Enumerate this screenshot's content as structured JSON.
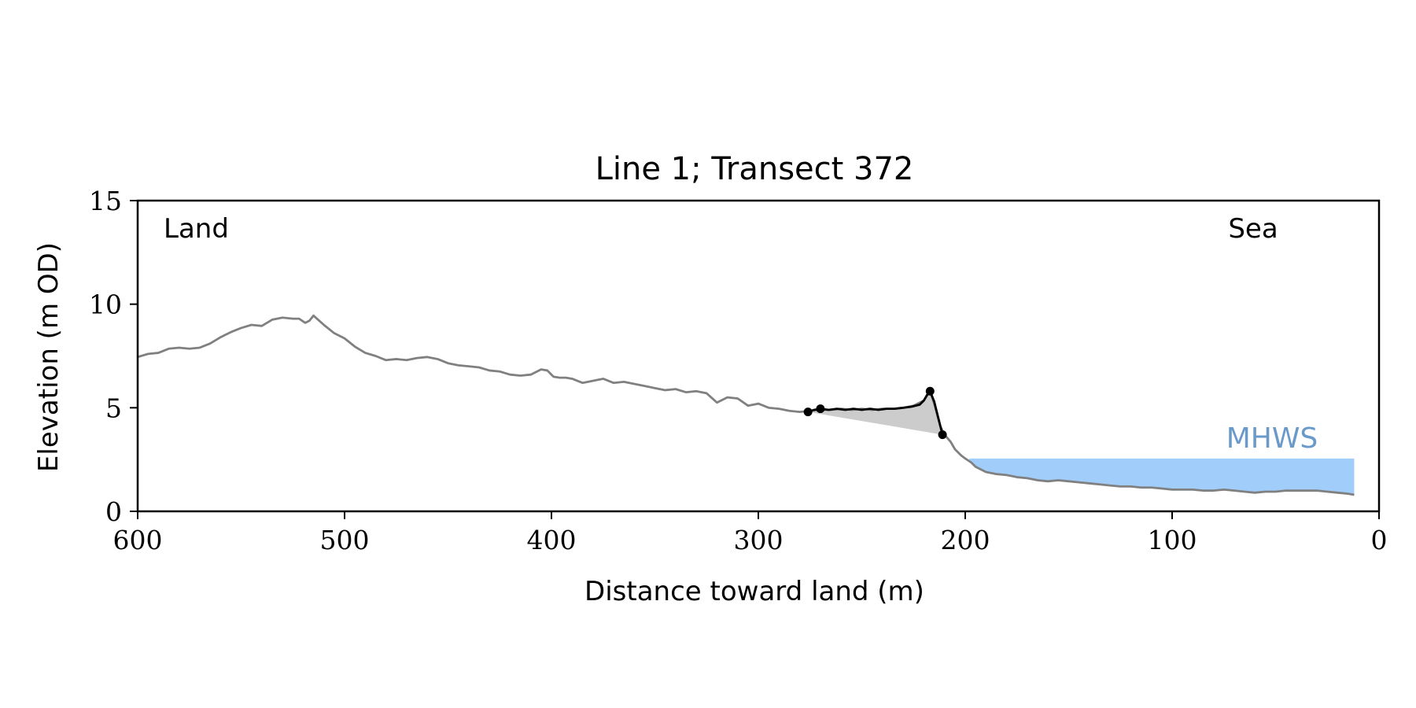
{
  "chart_data": {
    "type": "line",
    "title": "Line 1; Transect 372",
    "xlabel": "Distance toward land (m)",
    "ylabel": "Elevation (m OD)",
    "xlim": [
      600,
      0
    ],
    "ylim": [
      0,
      15
    ],
    "x_ticks": [
      600,
      500,
      400,
      300,
      200,
      100,
      0
    ],
    "y_ticks": [
      0,
      5,
      10,
      15
    ],
    "grid": false,
    "annotations": {
      "land": "Land",
      "sea": "Sea",
      "mhws": "MHWS"
    },
    "mhws": {
      "label": "MHWS",
      "elevation": 2.55,
      "x_range": [
        198,
        12
      ]
    },
    "series": [
      {
        "role": "full-profile",
        "x": [
          600,
          595,
          590,
          585,
          580,
          575,
          570,
          565,
          560,
          555,
          550,
          545,
          540,
          535,
          530,
          525,
          522,
          519,
          517,
          515,
          510,
          505,
          500,
          495,
          490,
          485,
          480,
          475,
          470,
          465,
          460,
          455,
          450,
          445,
          440,
          435,
          430,
          425,
          420,
          415,
          410,
          405,
          402,
          399,
          396,
          393,
          390,
          385,
          380,
          375,
          370,
          365,
          360,
          355,
          350,
          345,
          340,
          335,
          330,
          325,
          320,
          315,
          310,
          305,
          300,
          295,
          290,
          285,
          280,
          275,
          270,
          265,
          260,
          255,
          250,
          245,
          240,
          235,
          230,
          225,
          220,
          217,
          215,
          212,
          210,
          207,
          205,
          202,
          200,
          197,
          195,
          190,
          185,
          180,
          175,
          170,
          165,
          160,
          155,
          150,
          145,
          140,
          135,
          130,
          125,
          120,
          115,
          110,
          105,
          100,
          95,
          90,
          85,
          80,
          75,
          70,
          65,
          60,
          55,
          50,
          45,
          40,
          35,
          30,
          25,
          20,
          15,
          12
        ],
        "y": [
          7.45,
          7.6,
          7.65,
          7.85,
          7.9,
          7.85,
          7.9,
          8.1,
          8.4,
          8.65,
          8.85,
          9.0,
          8.95,
          9.25,
          9.35,
          9.3,
          9.3,
          9.1,
          9.2,
          9.45,
          9.0,
          8.6,
          8.35,
          7.95,
          7.65,
          7.5,
          7.3,
          7.35,
          7.3,
          7.4,
          7.45,
          7.35,
          7.15,
          7.05,
          7.0,
          6.95,
          6.8,
          6.75,
          6.6,
          6.55,
          6.6,
          6.85,
          6.8,
          6.5,
          6.45,
          6.45,
          6.4,
          6.2,
          6.3,
          6.4,
          6.2,
          6.25,
          6.15,
          6.05,
          5.95,
          5.85,
          5.9,
          5.75,
          5.8,
          5.7,
          5.25,
          5.5,
          5.45,
          5.1,
          5.2,
          5.0,
          4.95,
          4.85,
          4.8,
          4.85,
          4.9,
          4.9,
          4.95,
          4.9,
          4.95,
          4.9,
          4.95,
          4.95,
          5.0,
          5.1,
          5.35,
          5.8,
          5.2,
          4.1,
          3.7,
          3.35,
          3.0,
          2.7,
          2.55,
          2.35,
          2.15,
          1.9,
          1.8,
          1.75,
          1.65,
          1.6,
          1.5,
          1.45,
          1.5,
          1.45,
          1.4,
          1.35,
          1.3,
          1.25,
          1.2,
          1.2,
          1.15,
          1.15,
          1.1,
          1.05,
          1.05,
          1.05,
          1.0,
          1.0,
          1.05,
          1.0,
          0.95,
          0.9,
          0.95,
          0.95,
          1.0,
          1.0,
          1.0,
          1.0,
          0.95,
          0.9,
          0.85,
          0.8
        ]
      },
      {
        "role": "highlight",
        "x": [
          276,
          273,
          270,
          266,
          262,
          258,
          254,
          250,
          246,
          242,
          238,
          234,
          230,
          226,
          222,
          220,
          218,
          217,
          215,
          213,
          211
        ],
        "y": [
          4.8,
          4.9,
          4.95,
          4.9,
          4.95,
          4.9,
          4.95,
          4.9,
          4.95,
          4.9,
          4.95,
          4.95,
          5.0,
          5.05,
          5.15,
          5.35,
          5.7,
          5.8,
          5.3,
          4.5,
          3.7
        ]
      }
    ],
    "markers": {
      "x": [
        276,
        270,
        217,
        211
      ],
      "y": [
        4.8,
        4.95,
        5.8,
        3.7
      ]
    },
    "shaded_area": {
      "baseline_from": [
        276,
        4.8
      ],
      "baseline_to": [
        211,
        3.7
      ]
    },
    "colors": {
      "profile": "#808080",
      "highlight": "#000000",
      "shade": "#cccccc",
      "water": "#a0cdfa",
      "mhws_label": "#6a9ac9",
      "axes": "#000000"
    }
  }
}
